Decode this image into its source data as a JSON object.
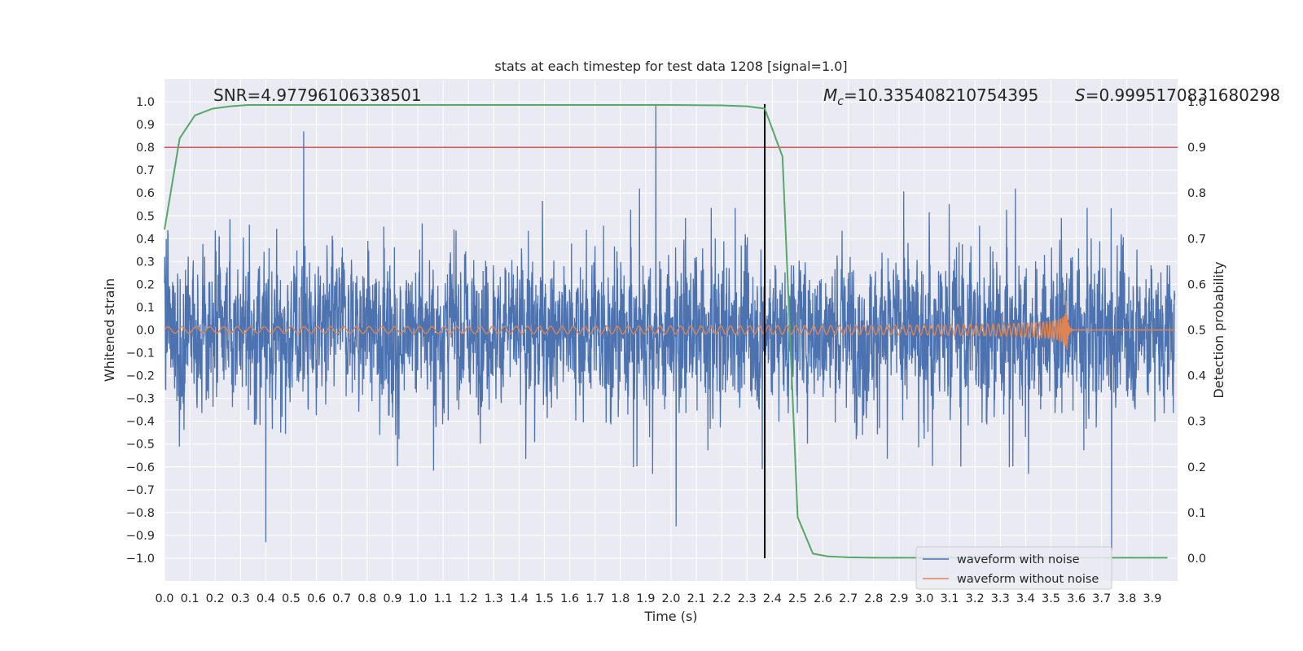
{
  "chart_data": {
    "type": "line",
    "title": "stats at each timestep for test data 1208 [signal=1.0]",
    "xlabel": "Time (s)",
    "ylabel": "Whitened strain",
    "y2label": "Detection probability",
    "xlim": [
      0.0,
      4.0
    ],
    "ylim": [
      -1.1,
      1.1
    ],
    "y2lim": [
      -0.05,
      1.05
    ],
    "xticks": [
      "0.0",
      "0.1",
      "0.2",
      "0.3",
      "0.4",
      "0.5",
      "0.6",
      "0.7",
      "0.8",
      "0.9",
      "1.0",
      "1.1",
      "1.2",
      "1.3",
      "1.4",
      "1.5",
      "1.6",
      "1.7",
      "1.8",
      "1.9",
      "2.0",
      "2.1",
      "2.2",
      "2.3",
      "2.4",
      "2.5",
      "2.6",
      "2.7",
      "2.8",
      "2.9",
      "3.0",
      "3.1",
      "3.2",
      "3.3",
      "3.4",
      "3.5",
      "3.6",
      "3.7",
      "3.8",
      "3.9"
    ],
    "yticks": [
      "1.0",
      "0.9",
      "0.8",
      "0.7",
      "0.6",
      "0.5",
      "0.4",
      "0.3",
      "0.2",
      "0.1",
      "0.0",
      "−0.1",
      "−0.2",
      "−0.3",
      "−0.4",
      "−0.5",
      "−0.6",
      "−0.7",
      "−0.8",
      "−0.9",
      "−1.0"
    ],
    "y2ticks": [
      "1.0",
      "0.9",
      "0.8",
      "0.7",
      "0.6",
      "0.5",
      "0.4",
      "0.3",
      "0.2",
      "0.1",
      "0.0"
    ],
    "annotations": {
      "snr": "SNR=4.97796106338501",
      "mc_symbol": "M",
      "mc_sub": "c",
      "mc_value": "=10.335408210754395",
      "s_symbol": "S",
      "s_value": "=0.9995170831680298"
    },
    "threshold": {
      "value": 0.9,
      "axis": "right",
      "color": "#c44e52"
    },
    "marker_time": 2.37,
    "noise_series": {
      "name": "waveform with noise",
      "color": "#4c72b0",
      "spikes": [
        {
          "x": 0.55,
          "y": 0.87
        },
        {
          "x": 1.94,
          "y": 0.99
        },
        {
          "x": 0.4,
          "y": -0.93
        },
        {
          "x": 3.74,
          "y": -0.97
        },
        {
          "x": 2.02,
          "y": -0.86
        },
        {
          "x": 2.36,
          "y": -0.61
        }
      ]
    },
    "clean_series": {
      "name": "waveform without noise",
      "color": "#dd8452",
      "t_merger": 3.56,
      "peak_amplitude": 0.15
    },
    "probability_series": {
      "name": "detection probability",
      "color": "#55a868",
      "x": [
        0.0,
        0.06,
        0.12,
        0.19,
        0.26,
        0.33,
        0.4,
        0.8,
        1.5,
        2.0,
        2.2,
        2.3,
        2.37,
        2.44,
        2.5,
        2.56,
        2.62,
        2.7,
        2.8,
        3.0,
        3.5,
        3.96
      ],
      "y": [
        0.72,
        0.92,
        0.97,
        0.985,
        0.99,
        0.993,
        0.993,
        0.993,
        0.993,
        0.993,
        0.992,
        0.99,
        0.985,
        0.88,
        0.09,
        0.01,
        0.004,
        0.002,
        0.001,
        0.001,
        0.001,
        0.001
      ]
    },
    "legend": {
      "position": "lower-right",
      "entries": [
        {
          "label": "waveform with noise",
          "color": "#4c72b0"
        },
        {
          "label": "waveform without noise",
          "color": "#dd8452"
        }
      ]
    }
  }
}
